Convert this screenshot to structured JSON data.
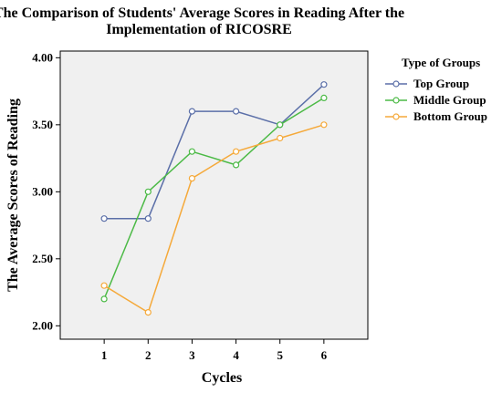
{
  "chart_data": {
    "type": "line",
    "title_line1": "The Comparison of Students' Average Scores in Reading After the",
    "title_line2": "Implementation of RICOSRE",
    "xlabel": "Cycles",
    "ylabel": "The Average Scores of Reading",
    "x": [
      1,
      2,
      3,
      4,
      5,
      6
    ],
    "x_tick_labels": [
      "1",
      "2",
      "3",
      "4",
      "5",
      "6"
    ],
    "ylim": [
      1.9,
      4.05
    ],
    "y_ticks": [
      2.0,
      2.5,
      3.0,
      3.5,
      4.0
    ],
    "y_tick_labels": [
      "2.00",
      "2.50",
      "3.00",
      "3.50",
      "4.00"
    ],
    "grid": false,
    "legend_title": "Type of Groups",
    "legend_position": "right",
    "series": [
      {
        "name": "Top Group",
        "color": "#5b6fa8",
        "values": [
          2.8,
          2.8,
          3.6,
          3.6,
          3.5,
          3.8
        ]
      },
      {
        "name": "Middle Group",
        "color": "#4cba46",
        "values": [
          2.2,
          3.0,
          3.3,
          3.2,
          3.5,
          3.7
        ]
      },
      {
        "name": "Bottom Group",
        "color": "#f5a93a",
        "values": [
          2.3,
          2.1,
          3.1,
          3.3,
          3.4,
          3.5
        ]
      }
    ]
  }
}
